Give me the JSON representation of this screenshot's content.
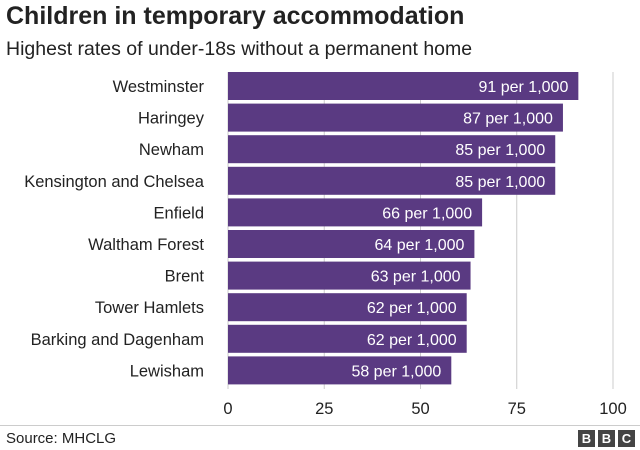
{
  "title": "Children in temporary accommodation",
  "subtitle": "Highest rates of under-18s without a permanent home",
  "source": "Source: MHCLG",
  "logo": [
    "B",
    "B",
    "C"
  ],
  "colors": {
    "bar": "#5a3a82",
    "text": "#222222",
    "grid": "#cccccc",
    "label": "#ffffff"
  },
  "chart_data": {
    "type": "bar",
    "orientation": "horizontal",
    "categories": [
      "Westminster",
      "Haringey",
      "Newham",
      "Kensington and Chelsea",
      "Enfield",
      "Waltham Forest",
      "Brent",
      "Tower Hamlets",
      "Barking and Dagenham",
      "Lewisham"
    ],
    "values": [
      91,
      87,
      85,
      85,
      66,
      64,
      63,
      62,
      62,
      58
    ],
    "data_labels": [
      "91 per 1,000",
      "87 per 1,000",
      "85 per 1,000",
      "85 per 1,000",
      "66 per 1,000",
      "64 per 1,000",
      "63 per 1,000",
      "62 per 1,000",
      "62 per 1,000",
      "58 per 1,000"
    ],
    "xlim": [
      0,
      100
    ],
    "xticks": [
      0,
      25,
      50,
      75,
      100
    ],
    "xlabel": "",
    "ylabel": "",
    "grid": true
  }
}
